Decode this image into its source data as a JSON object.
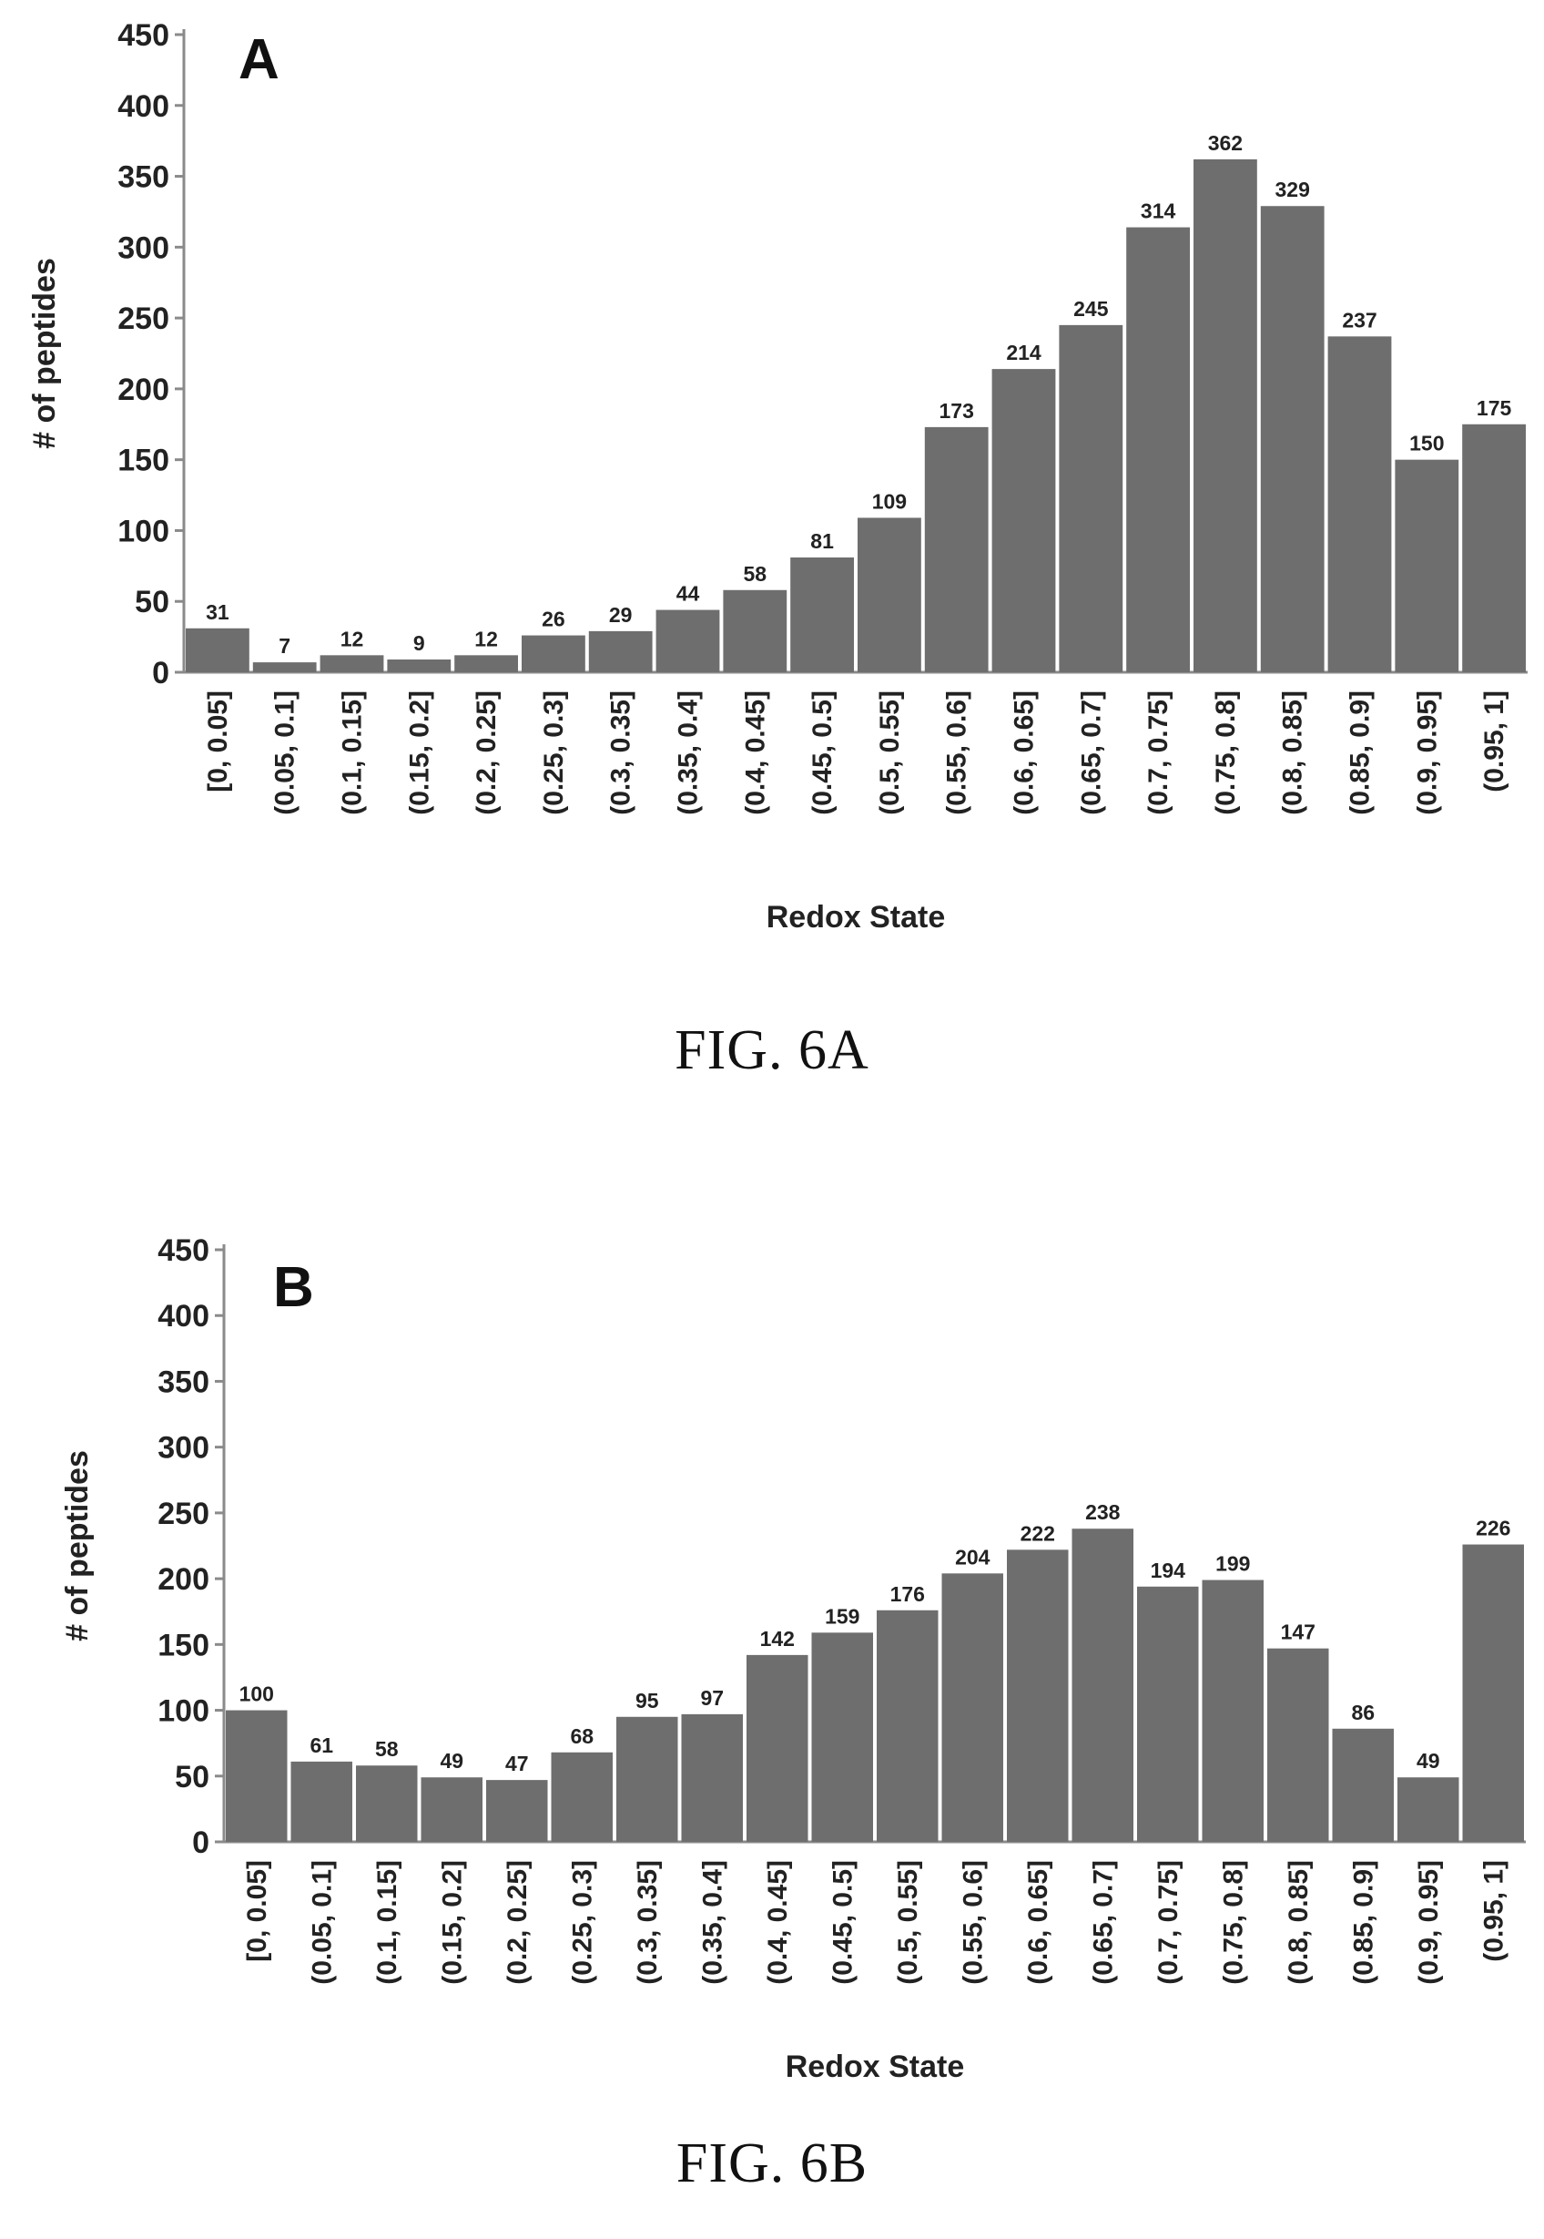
{
  "chart_data": [
    {
      "type": "bar",
      "panel_label": "A",
      "caption": "FIG. 6A",
      "xlabel": "Redox State",
      "ylabel": "# of peptides",
      "ylim": [
        0,
        450
      ],
      "yticks": [
        0,
        50,
        100,
        150,
        200,
        250,
        300,
        350,
        400,
        450
      ],
      "categories": [
        "[0, 0.05]",
        "(0.05, 0.1]",
        "(0.1, 0.15]",
        "(0.15, 0.2]",
        "(0.2, 0.25]",
        "(0.25, 0.3]",
        "(0.3, 0.35]",
        "(0.35, 0.4]",
        "(0.4, 0.45]",
        "(0.45, 0.5]",
        "(0.5, 0.55]",
        "(0.55, 0.6]",
        "(0.6, 0.65]",
        "(0.65, 0.7]",
        "(0.7, 0.75]",
        "(0.75, 0.8]",
        "(0.8, 0.85]",
        "(0.85, 0.9]",
        "(0.9, 0.95]",
        "(0.95, 1]"
      ],
      "values": [
        31,
        7,
        12,
        9,
        12,
        26,
        29,
        44,
        58,
        81,
        109,
        173,
        214,
        245,
        314,
        362,
        329,
        237,
        150,
        175
      ],
      "bar_color": "#6e6e6e",
      "grid": false
    },
    {
      "type": "bar",
      "panel_label": "B",
      "caption": "FIG. 6B",
      "xlabel": "Redox State",
      "ylabel": "# of peptides",
      "ylim": [
        0,
        450
      ],
      "yticks": [
        0,
        50,
        100,
        150,
        200,
        250,
        300,
        350,
        400,
        450
      ],
      "categories": [
        "[0, 0.05]",
        "(0.05, 0.1]",
        "(0.1, 0.15]",
        "(0.15, 0.2]",
        "(0.2, 0.25]",
        "(0.25, 0.3]",
        "(0.3, 0.35]",
        "(0.35, 0.4]",
        "(0.4, 0.45]",
        "(0.45, 0.5]",
        "(0.5, 0.55]",
        "(0.55, 0.6]",
        "(0.6, 0.65]",
        "(0.65, 0.7]",
        "(0.7, 0.75]",
        "(0.75, 0.8]",
        "(0.8, 0.85]",
        "(0.85, 0.9]",
        "(0.9, 0.95]",
        "(0.95, 1]"
      ],
      "values": [
        100,
        61,
        58,
        49,
        47,
        68,
        95,
        97,
        142,
        159,
        176,
        204,
        222,
        238,
        194,
        199,
        147,
        86,
        49,
        226
      ],
      "bar_color": "#6e6e6e",
      "grid": false
    }
  ]
}
